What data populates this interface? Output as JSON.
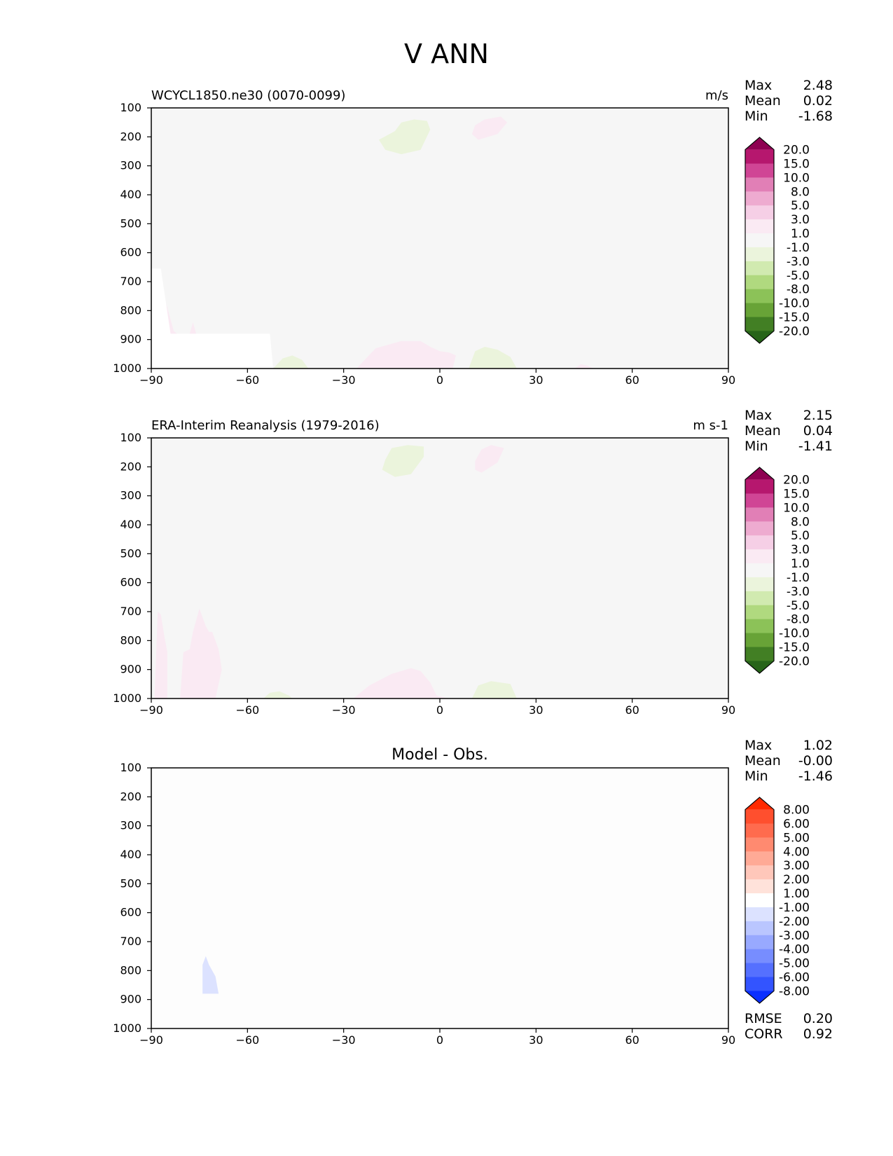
{
  "figure": {
    "title": "V ANN"
  },
  "colorbars": {
    "main": {
      "labels": [
        "20.0",
        "15.0",
        "10.0",
        "8.0",
        "5.0",
        "3.0",
        "1.0",
        "-1.0",
        "-3.0",
        "-5.0",
        "-8.0",
        "-10.0",
        "-15.0",
        "-20.0"
      ],
      "colors": [
        "#8e0152",
        "#b6176e",
        "#d04595",
        "#e17fb6",
        "#eeabd0",
        "#f6cfe6",
        "#faeaf3",
        "#f6f6f6",
        "#ebf4dc",
        "#d1eab0",
        "#b0d97f",
        "#8cc258",
        "#68a337",
        "#427f24",
        "#276419"
      ]
    },
    "diff": {
      "labels": [
        "8.00",
        "6.00",
        "5.00",
        "4.00",
        "3.00",
        "2.00",
        "1.00",
        "-1.00",
        "-2.00",
        "-3.00",
        "-4.00",
        "-5.00",
        "-6.00",
        "-8.00"
      ],
      "colors": [
        "#ff2a00",
        "#ff4f2e",
        "#ff6b4e",
        "#ff8a70",
        "#ffaa96",
        "#ffc7ba",
        "#ffe2da",
        "#ffffff",
        "#dce2ff",
        "#bac6ff",
        "#98a9ff",
        "#778dff",
        "#5570ff",
        "#3354ff",
        "#0a2fff"
      ]
    }
  },
  "chart_data": [
    {
      "type": "contour",
      "title": "WCYCL1850.ne30 (0070-0099)",
      "units": "m/s",
      "xlim": [
        -90,
        90
      ],
      "ylim": [
        1000,
        100
      ],
      "xticks": [
        "−90",
        "−60",
        "−30",
        "0",
        "30",
        "60",
        "90"
      ],
      "yticks": [
        "100",
        "200",
        "300",
        "400",
        "500",
        "600",
        "700",
        "800",
        "900",
        "1000"
      ],
      "stats": {
        "max_label": "Max",
        "max": "2.48",
        "mean_label": "Mean",
        "mean": "0.02",
        "min_label": "Min",
        "min": "-1.68"
      },
      "colorbar": "main",
      "background_color": "#f6f6f6",
      "regions": [
        {
          "color": "#ebf4dc",
          "points": [
            [
              -14,
              180
            ],
            [
              -12,
              150
            ],
            [
              -8,
              140
            ],
            [
              -4,
              145
            ],
            [
              -3,
              175
            ],
            [
              -6,
              245
            ],
            [
              -12,
              260
            ],
            [
              -17,
              245
            ],
            [
              -19,
              210
            ]
          ]
        },
        {
          "color": "#faeaf3",
          "points": [
            [
              10,
              190
            ],
            [
              11,
              160
            ],
            [
              14,
              140
            ],
            [
              19,
              130
            ],
            [
              21,
              150
            ],
            [
              18,
              190
            ],
            [
              12,
              210
            ]
          ]
        },
        {
          "color": "#faeaf3",
          "points": [
            [
              -26,
              1000
            ],
            [
              -20,
              930
            ],
            [
              -12,
              905
            ],
            [
              -6,
              905
            ],
            [
              -3,
              925
            ],
            [
              0,
              940
            ],
            [
              3,
              945
            ],
            [
              5,
              955
            ],
            [
              4,
              1000
            ]
          ]
        },
        {
          "color": "#ebf4dc",
          "points": [
            [
              9,
              1000
            ],
            [
              11,
              940
            ],
            [
              14,
              925
            ],
            [
              18,
              935
            ],
            [
              22,
              960
            ],
            [
              24,
              1000
            ]
          ]
        },
        {
          "color": "#ebf4dc",
          "points": [
            [
              -52,
              1000
            ],
            [
              -49,
              965
            ],
            [
              -46,
              955
            ],
            [
              -43,
              970
            ],
            [
              -41,
              1000
            ]
          ]
        },
        {
          "color": "#faeaf3",
          "points": [
            [
              42,
              1000
            ],
            [
              44,
              985
            ],
            [
              46,
              990
            ],
            [
              48,
              1000
            ]
          ]
        },
        {
          "color": "#faeaf3",
          "points": [
            [
              -87,
              720
            ],
            [
              -85,
              790
            ],
            [
              -83,
              870
            ],
            [
              -82,
              880
            ],
            [
              -86,
              880
            ]
          ]
        },
        {
          "color": "#faeaf3",
          "points": [
            [
              -78,
              880
            ],
            [
              -77,
              840
            ],
            [
              -76,
              880
            ]
          ]
        },
        {
          "color": "#ffffff",
          "points": [
            [
              -90,
              1000
            ],
            [
              -90,
              655
            ],
            [
              -87,
              655
            ],
            [
              -84,
              880
            ],
            [
              -53,
              880
            ],
            [
              -52,
              1000
            ]
          ]
        }
      ]
    },
    {
      "type": "contour",
      "title": "ERA-Interim Reanalysis (1979-2016)",
      "units": "m s-1",
      "xlim": [
        -90,
        90
      ],
      "ylim": [
        1000,
        100
      ],
      "xticks": [
        "−90",
        "−60",
        "−30",
        "0",
        "30",
        "60",
        "90"
      ],
      "yticks": [
        "100",
        "200",
        "300",
        "400",
        "500",
        "600",
        "700",
        "800",
        "900",
        "1000"
      ],
      "stats": {
        "max_label": "Max",
        "max": "2.15",
        "mean_label": "Mean",
        "mean": "0.04",
        "min_label": "Min",
        "min": "-1.41"
      },
      "colorbar": "main",
      "background_color": "#f6f6f6",
      "regions": [
        {
          "color": "#ebf4dc",
          "points": [
            [
              -17,
              175
            ],
            [
              -15,
              135
            ],
            [
              -10,
              125
            ],
            [
              -5,
              130
            ],
            [
              -5,
              165
            ],
            [
              -9,
              225
            ],
            [
              -14,
              235
            ],
            [
              -18,
              210
            ]
          ]
        },
        {
          "color": "#faeaf3",
          "points": [
            [
              11,
              210
            ],
            [
              11,
              180
            ],
            [
              13,
              140
            ],
            [
              16,
              125
            ],
            [
              20,
              135
            ],
            [
              18,
              185
            ],
            [
              13,
              220
            ]
          ]
        },
        {
          "color": "#faeaf3",
          "points": [
            [
              -27,
              1000
            ],
            [
              -22,
              955
            ],
            [
              -15,
              915
            ],
            [
              -9,
              895
            ],
            [
              -6,
              905
            ],
            [
              -3,
              945
            ],
            [
              -1,
              990
            ],
            [
              3,
              1000
            ]
          ]
        },
        {
          "color": "#ebf4dc",
          "points": [
            [
              10,
              1000
            ],
            [
              12,
              955
            ],
            [
              16,
              940
            ],
            [
              22,
              950
            ],
            [
              24,
              1000
            ]
          ]
        },
        {
          "color": "#ebf4dc",
          "points": [
            [
              -55,
              1000
            ],
            [
              -53,
              980
            ],
            [
              -50,
              975
            ],
            [
              -47,
              990
            ],
            [
              -46,
              1000
            ]
          ]
        },
        {
          "color": "#faeaf3",
          "points": [
            [
              -89,
              1000
            ],
            [
              -88,
              700
            ],
            [
              -87,
              710
            ],
            [
              -86,
              780
            ],
            [
              -85,
              840
            ],
            [
              -85,
              1000
            ]
          ]
        },
        {
          "color": "#faeaf3",
          "points": [
            [
              -81,
              1000
            ],
            [
              -80,
              840
            ],
            [
              -78,
              830
            ],
            [
              -77,
              770
            ],
            [
              -75,
              690
            ],
            [
              -73,
              750
            ],
            [
              -72,
              770
            ],
            [
              -71,
              770
            ],
            [
              -69,
              830
            ],
            [
              -68,
              900
            ],
            [
              -70,
              1000
            ]
          ]
        }
      ]
    },
    {
      "type": "contour",
      "title": "Model - Obs.",
      "units": "",
      "xlim": [
        -90,
        90
      ],
      "ylim": [
        1000,
        100
      ],
      "xticks": [
        "−90",
        "−60",
        "−30",
        "0",
        "30",
        "60",
        "90"
      ],
      "yticks": [
        "100",
        "200",
        "300",
        "400",
        "500",
        "600",
        "700",
        "800",
        "900",
        "1000"
      ],
      "stats": {
        "max_label": "Max",
        "max": "1.02",
        "mean_label": "Mean",
        "mean": "-0.00",
        "min_label": "Min",
        "min": "-1.46"
      },
      "extra_stats": {
        "rmse_label": "RMSE",
        "rmse": "0.20",
        "corr_label": "CORR",
        "corr": "0.92"
      },
      "colorbar": "diff",
      "background_color": "#fdfdfd",
      "regions": [
        {
          "color": "#dce2ff",
          "points": [
            [
              -74,
              880
            ],
            [
              -74,
              780
            ],
            [
              -73,
              750
            ],
            [
              -72,
              780
            ],
            [
              -70,
              820
            ],
            [
              -69,
              880
            ]
          ]
        }
      ]
    }
  ]
}
